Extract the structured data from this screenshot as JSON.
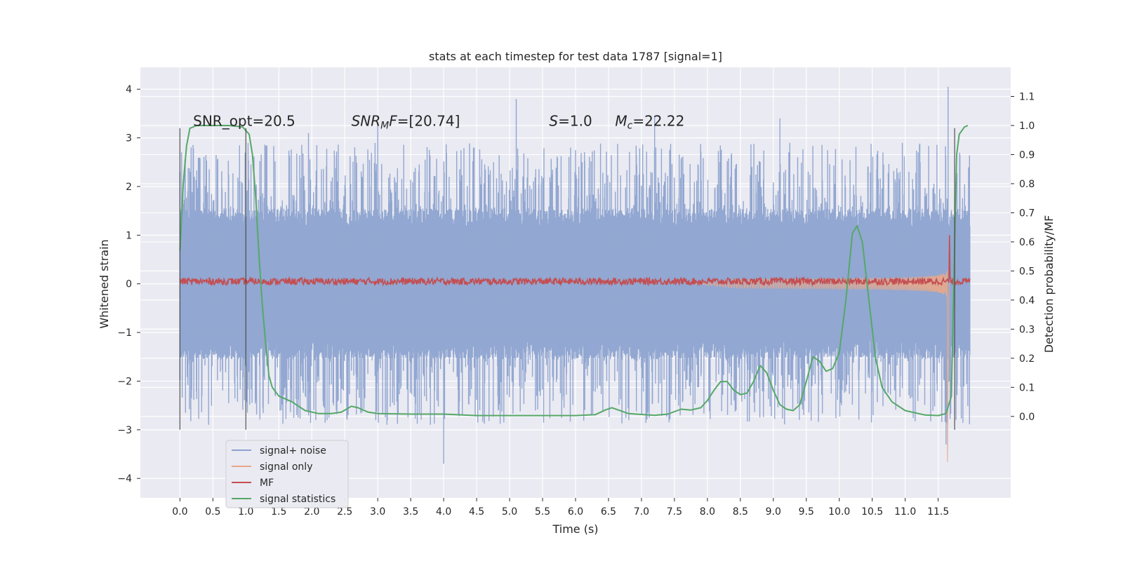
{
  "chart_data": {
    "type": "line",
    "title": "stats at each timestep for test data 1787 [signal=1]",
    "xlabel": "Time (s)",
    "ylabel_left": "Whitened strain",
    "ylabel_right": "Detection probability/MF",
    "xlim": [
      -0.6,
      12.6
    ],
    "ylim_left": [
      -4.4,
      4.45
    ],
    "ylim_right": [
      -0.28,
      1.2
    ],
    "grid": true,
    "x_ticks": [
      "0.0",
      "0.5",
      "1.0",
      "1.5",
      "2.0",
      "2.5",
      "3.0",
      "3.5",
      "4.0",
      "4.5",
      "5.0",
      "5.5",
      "6.0",
      "6.5",
      "7.0",
      "7.5",
      "8.0",
      "8.5",
      "9.0",
      "9.5",
      "10.0",
      "10.5",
      "11.0",
      "11.5"
    ],
    "y_ticks_left": [
      "4",
      "3",
      "2",
      "1",
      "0",
      "−1",
      "−2",
      "−3",
      "−4"
    ],
    "y_ticks_right": [
      "1.1",
      "1.0",
      "0.9",
      "0.8",
      "0.7",
      "0.6",
      "0.5",
      "0.4",
      "0.3",
      "0.2",
      "0.1",
      "0.0"
    ],
    "annotations": [
      {
        "text": "SNR_opt=20.5",
        "x": 0.2
      },
      {
        "text": "SNR_MF=[20.74]",
        "x": 2.6
      },
      {
        "text": "S=1.0",
        "x": 5.6
      },
      {
        "text": "M_c=22.22",
        "x": 6.6
      }
    ],
    "annotation_y": 3.25,
    "vlines": [
      0.0,
      1.0,
      11.75
    ],
    "vline_range": [
      -3.0,
      3.2
    ],
    "legend": {
      "placement": "lower-left",
      "entries": [
        {
          "label": "signal+ noise",
          "color": "#8da3cf"
        },
        {
          "label": "signal only",
          "color": "#e8a88a"
        },
        {
          "label": "MF",
          "color": "#c44e52"
        },
        {
          "label": "signal statistics",
          "color": "#55a868"
        }
      ]
    },
    "series": [
      {
        "name": "signal+ noise",
        "axis": "left",
        "color": "#8da3cf",
        "x_range": [
          0.0,
          11.98
        ],
        "band_mid": 1.35,
        "band_mid_low": -1.35,
        "typical_peak": 2.3,
        "spikes": [
          [
            4.0,
            -3.7
          ],
          [
            5.1,
            3.8
          ],
          [
            7.2,
            3.45
          ],
          [
            11.65,
            4.05
          ],
          [
            11.62,
            -3.3
          ],
          [
            3.0,
            3.3
          ],
          [
            1.95,
            3.1
          ],
          [
            9.1,
            3.4
          ]
        ]
      },
      {
        "name": "signal only",
        "axis": "left",
        "color": "#e8a88a",
        "x_range": [
          7.8,
          11.68
        ],
        "peak_x": 11.65,
        "peak_amp": 3.75,
        "min_amp": -3.85
      },
      {
        "name": "MF",
        "axis": "left",
        "color": "#c44e52",
        "x_range": [
          0.0,
          11.98
        ],
        "level": 0.05,
        "jitter": 0.07,
        "spike": [
          11.67,
          1.0
        ]
      },
      {
        "name": "signal statistics",
        "axis": "right",
        "color": "#55a868",
        "points": [
          [
            0.0,
            0.57
          ],
          [
            0.05,
            0.8
          ],
          [
            0.1,
            0.93
          ],
          [
            0.15,
            0.99
          ],
          [
            0.25,
            1.0
          ],
          [
            0.5,
            1.0
          ],
          [
            0.75,
            1.0
          ],
          [
            0.95,
            0.995
          ],
          [
            1.05,
            0.97
          ],
          [
            1.1,
            0.9
          ],
          [
            1.15,
            0.75
          ],
          [
            1.2,
            0.55
          ],
          [
            1.25,
            0.38
          ],
          [
            1.3,
            0.25
          ],
          [
            1.35,
            0.14
          ],
          [
            1.4,
            0.1
          ],
          [
            1.5,
            0.07
          ],
          [
            1.7,
            0.05
          ],
          [
            1.9,
            0.02
          ],
          [
            2.1,
            0.01
          ],
          [
            2.3,
            0.01
          ],
          [
            2.45,
            0.015
          ],
          [
            2.6,
            0.035
          ],
          [
            2.7,
            0.03
          ],
          [
            2.85,
            0.015
          ],
          [
            3.0,
            0.01
          ],
          [
            3.5,
            0.008
          ],
          [
            4.0,
            0.008
          ],
          [
            4.5,
            0.003
          ],
          [
            5.0,
            0.003
          ],
          [
            5.5,
            0.003
          ],
          [
            6.0,
            0.003
          ],
          [
            6.3,
            0.006
          ],
          [
            6.45,
            0.022
          ],
          [
            6.55,
            0.03
          ],
          [
            6.65,
            0.022
          ],
          [
            6.8,
            0.01
          ],
          [
            7.2,
            0.004
          ],
          [
            7.4,
            0.008
          ],
          [
            7.6,
            0.025
          ],
          [
            7.75,
            0.022
          ],
          [
            7.9,
            0.03
          ],
          [
            8.0,
            0.055
          ],
          [
            8.1,
            0.09
          ],
          [
            8.2,
            0.12
          ],
          [
            8.3,
            0.12
          ],
          [
            8.4,
            0.09
          ],
          [
            8.5,
            0.075
          ],
          [
            8.6,
            0.08
          ],
          [
            8.7,
            0.12
          ],
          [
            8.8,
            0.175
          ],
          [
            8.9,
            0.15
          ],
          [
            9.0,
            0.09
          ],
          [
            9.1,
            0.04
          ],
          [
            9.2,
            0.025
          ],
          [
            9.3,
            0.02
          ],
          [
            9.4,
            0.04
          ],
          [
            9.5,
            0.12
          ],
          [
            9.6,
            0.205
          ],
          [
            9.7,
            0.19
          ],
          [
            9.8,
            0.155
          ],
          [
            9.9,
            0.165
          ],
          [
            10.0,
            0.22
          ],
          [
            10.1,
            0.4
          ],
          [
            10.2,
            0.63
          ],
          [
            10.27,
            0.655
          ],
          [
            10.35,
            0.6
          ],
          [
            10.45,
            0.4
          ],
          [
            10.55,
            0.2
          ],
          [
            10.65,
            0.1
          ],
          [
            10.8,
            0.05
          ],
          [
            11.0,
            0.02
          ],
          [
            11.3,
            0.005
          ],
          [
            11.5,
            0.003
          ],
          [
            11.62,
            0.01
          ],
          [
            11.7,
            0.07
          ],
          [
            11.75,
            0.6
          ],
          [
            11.78,
            0.9
          ],
          [
            11.82,
            0.97
          ],
          [
            11.9,
            0.995
          ],
          [
            11.95,
            1.0
          ]
        ]
      }
    ]
  }
}
